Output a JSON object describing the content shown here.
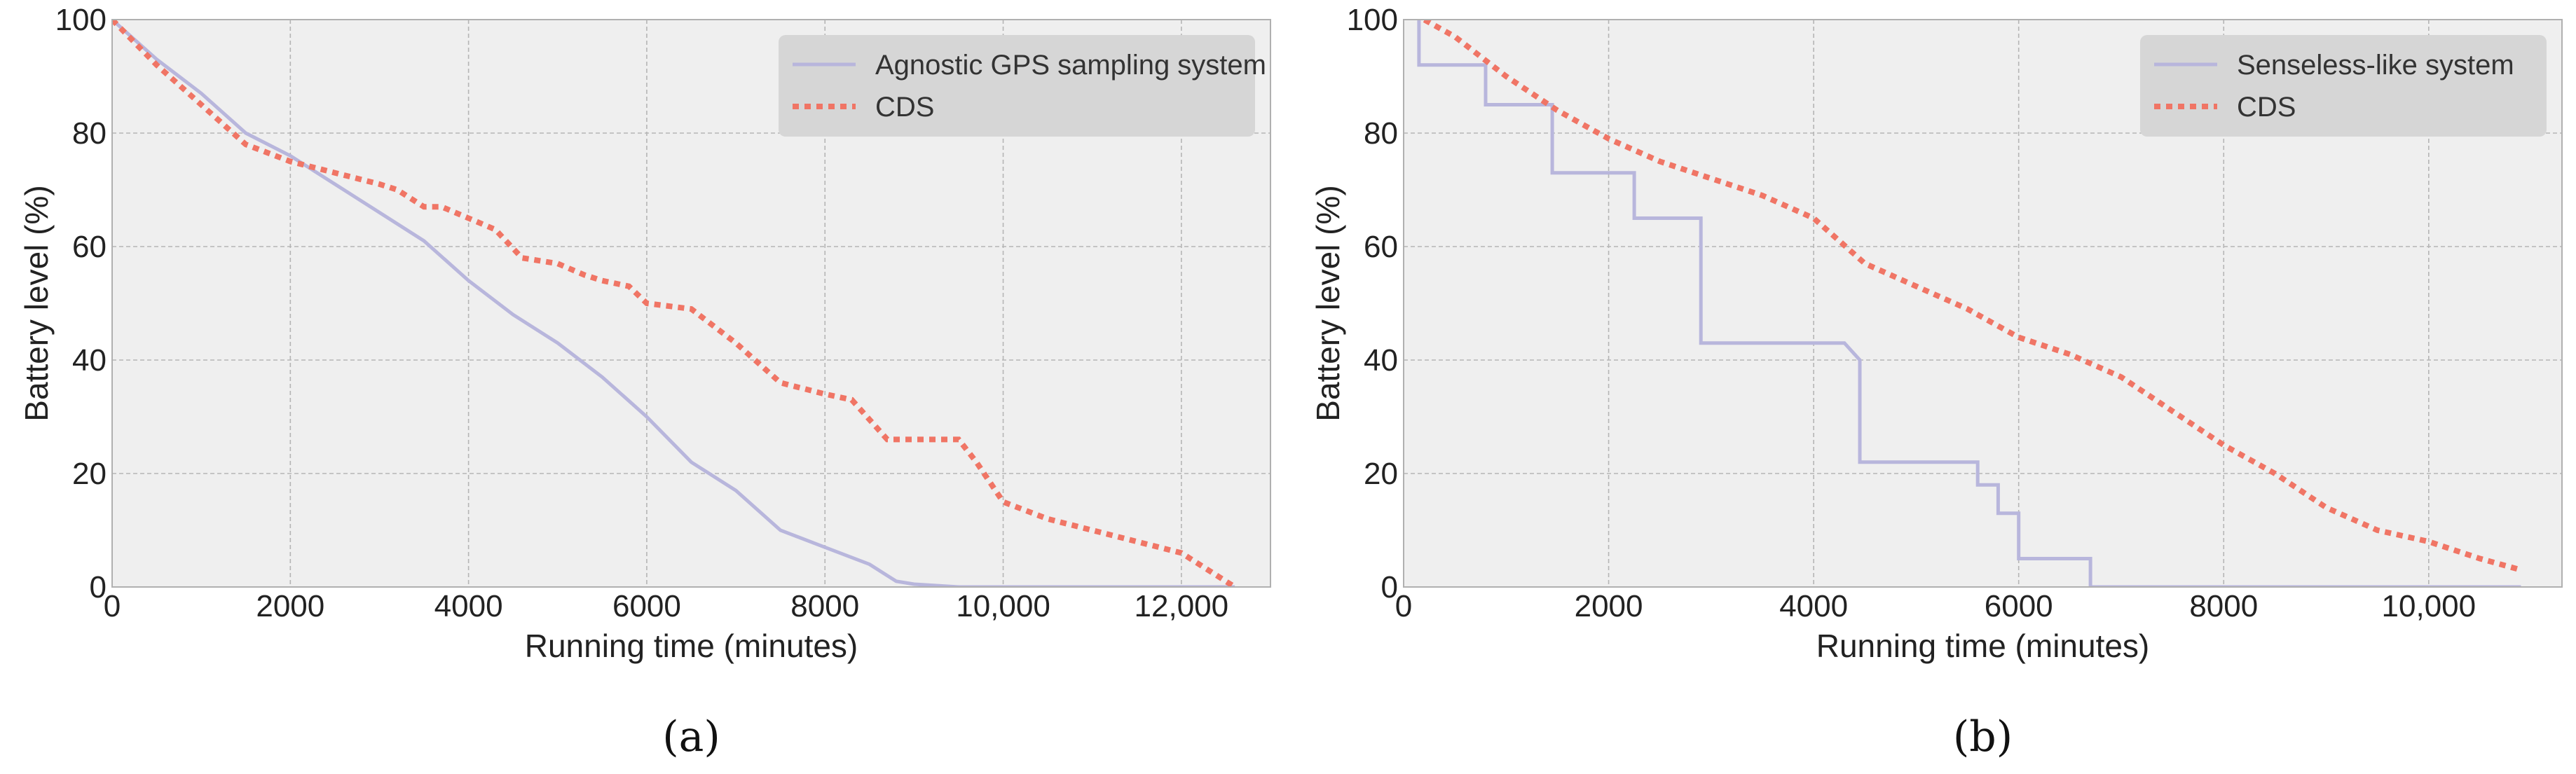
{
  "colors": {
    "background": "#efefef",
    "legend_box": "#d6d6d6",
    "system_line": "#b8b6dc",
    "cds_line": "#f07565",
    "frame": "#b0b0b0"
  },
  "chart_data": [
    {
      "id": "a",
      "type": "line",
      "caption": "(a)",
      "xlabel": "Running time (minutes)",
      "ylabel": "Battery level (%)",
      "xlim": [
        0,
        13000
      ],
      "ylim": [
        0,
        100
      ],
      "xticks": [
        0,
        2000,
        4000,
        6000,
        8000,
        10000,
        12000
      ],
      "xtick_labels": [
        "0",
        "2000",
        "4000",
        "6000",
        "8000",
        "10,000",
        "12,000"
      ],
      "yticks": [
        0,
        20,
        40,
        60,
        80,
        100
      ],
      "ytick_labels": [
        "0",
        "20",
        "40",
        "60",
        "80",
        "100"
      ],
      "grid": true,
      "legend_position": "top-right",
      "series": [
        {
          "name": "Agnostic GPS sampling system",
          "style": "solid",
          "x": [
            0,
            500,
            1000,
            1500,
            2000,
            2500,
            3000,
            3500,
            4000,
            4500,
            5000,
            5500,
            6000,
            6500,
            7000,
            7500,
            8000,
            8500,
            8800,
            9000,
            9500,
            10000,
            11000,
            12000,
            12600
          ],
          "y": [
            100,
            93,
            87,
            80,
            76,
            71,
            66,
            61,
            54,
            48,
            43,
            37,
            30,
            22,
            17,
            10,
            7,
            4,
            1,
            0.5,
            0,
            0,
            0,
            0,
            0
          ]
        },
        {
          "name": "CDS",
          "style": "dotted",
          "x": [
            0,
            500,
            1000,
            1500,
            2000,
            2500,
            3000,
            3200,
            3500,
            3700,
            4000,
            4300,
            4600,
            5000,
            5300,
            5500,
            5800,
            6000,
            6500,
            7000,
            7500,
            8000,
            8300,
            8700,
            9000,
            9500,
            9700,
            10000,
            10500,
            11000,
            11500,
            12000,
            12300,
            12600
          ],
          "y": [
            100,
            92,
            85,
            78,
            75,
            73,
            71,
            70,
            67,
            67,
            65,
            63,
            58,
            57,
            55,
            54,
            53,
            50,
            49,
            43,
            36,
            34,
            33,
            26,
            26,
            26,
            22,
            15,
            12,
            10,
            8,
            6,
            3,
            0
          ]
        }
      ]
    },
    {
      "id": "b",
      "type": "line",
      "caption": "(b)",
      "xlabel": "Running time (minutes)",
      "ylabel": "Battery level (%)",
      "xlim": [
        0,
        11300
      ],
      "ylim": [
        0,
        100
      ],
      "xticks": [
        0,
        2000,
        4000,
        6000,
        8000,
        10000
      ],
      "xtick_labels": [
        "0",
        "2000",
        "4000",
        "6000",
        "8000",
        "10,000"
      ],
      "yticks": [
        0,
        20,
        40,
        60,
        80,
        100
      ],
      "ytick_labels": [
        "0",
        "20",
        "40",
        "60",
        "80",
        "100"
      ],
      "grid": true,
      "legend_position": "top-right",
      "series": [
        {
          "name": "Senseless-like system",
          "style": "solid",
          "x": [
            0,
            150,
            150,
            800,
            800,
            1450,
            1450,
            2250,
            2250,
            2900,
            2900,
            4300,
            4450,
            4450,
            5600,
            5600,
            5800,
            5800,
            6000,
            6000,
            6700,
            6700,
            10900
          ],
          "y": [
            102,
            102,
            92,
            92,
            85,
            85,
            73,
            73,
            65,
            65,
            43,
            43,
            40,
            22,
            22,
            18,
            18,
            13,
            13,
            5,
            5,
            0,
            0
          ]
        },
        {
          "name": "CDS",
          "style": "dotted",
          "x": [
            0,
            500,
            1000,
            1500,
            2000,
            2500,
            3000,
            3500,
            4000,
            4500,
            5000,
            5500,
            6000,
            6500,
            7000,
            7500,
            8000,
            8500,
            9000,
            9500,
            10000,
            10500,
            10900
          ],
          "y": [
            102,
            97,
            90,
            84,
            79,
            75,
            72,
            69,
            65,
            57,
            53,
            49,
            44,
            41,
            37,
            31,
            25,
            20,
            14,
            10,
            8,
            5,
            3
          ]
        }
      ]
    }
  ]
}
